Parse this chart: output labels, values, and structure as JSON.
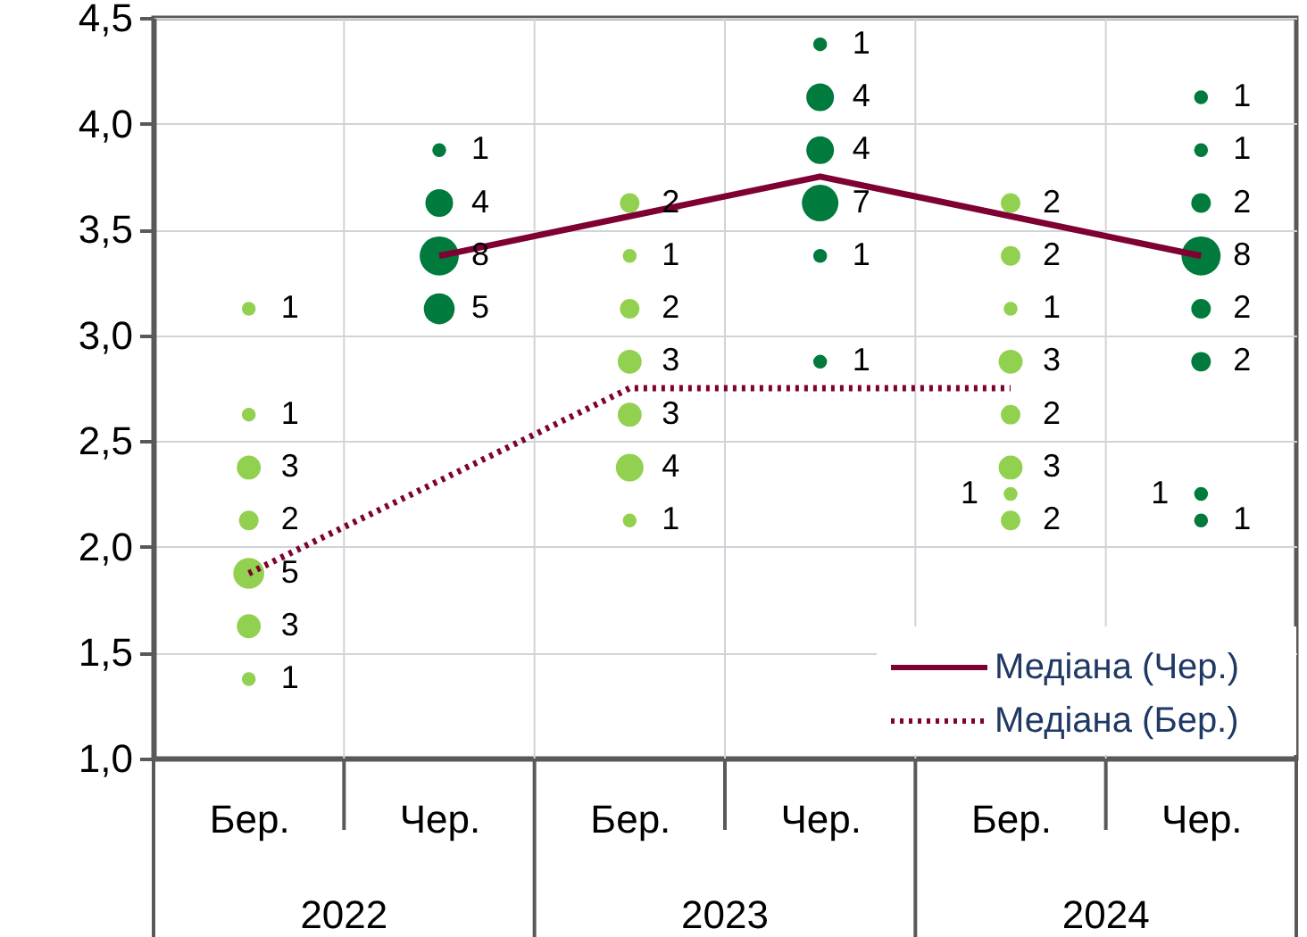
{
  "chart_data": {
    "type": "bubble",
    "categories": [
      "Бер.",
      "Чер.",
      "Бер.",
      "Чер.",
      "Бер.",
      "Чер."
    ],
    "annotations": [
      "2022",
      "2023",
      "2024"
    ],
    "ylim": [
      1.0,
      4.5
    ],
    "yticks": [
      {
        "value": 1.0,
        "label": "1,0"
      },
      {
        "value": 1.5,
        "label": "1,5"
      },
      {
        "value": 2.0,
        "label": "2,0"
      },
      {
        "value": 2.5,
        "label": "2,5"
      },
      {
        "value": 3.0,
        "label": "3,0"
      },
      {
        "value": 3.5,
        "label": "3,5"
      },
      {
        "value": 4.0,
        "label": "4,0"
      },
      {
        "value": 4.5,
        "label": "4,5"
      }
    ],
    "grid": true,
    "legend": "bottom right",
    "series": [
      {
        "colors": [
          "#92d050",
          "#007a3d",
          "#92d050",
          "#007a3d",
          "#92d050",
          "#007a3d"
        ],
        "values": [
          3.125,
          3.875,
          3.625,
          4.375,
          3.625,
          4.125
        ],
        "sizes": [
          1,
          1,
          2,
          1,
          2,
          1
        ],
        "value_labels": [
          "1",
          "1",
          "2",
          "1",
          "2",
          "1"
        ]
      },
      {
        "colors": [
          "#92d050",
          "#007a3d",
          "#92d050",
          "#007a3d",
          "#92d050",
          "#007a3d"
        ],
        "values": [
          2.625,
          3.625,
          3.375,
          4.125,
          3.375,
          3.875
        ],
        "sizes": [
          1,
          4,
          1,
          4,
          2,
          1
        ],
        "value_labels": [
          "1",
          "4",
          "1",
          "4",
          "2",
          "1"
        ]
      },
      {
        "colors": [
          "#92d050",
          "#007a3d",
          "#92d050",
          "#007a3d",
          "#92d050",
          "#007a3d"
        ],
        "values": [
          2.375,
          3.375,
          3.125,
          3.875,
          3.125,
          3.625
        ],
        "sizes": [
          3,
          8,
          2,
          4,
          1,
          2
        ],
        "value_labels": [
          "3",
          "8",
          "2",
          "4",
          "1",
          "2"
        ]
      },
      {
        "colors": [
          "#92d050",
          "#007a3d",
          "#92d050",
          "#007a3d",
          "#92d050",
          "#007a3d"
        ],
        "values": [
          2.125,
          3.125,
          2.875,
          3.625,
          2.875,
          3.375
        ],
        "sizes": [
          2,
          5,
          3,
          7,
          3,
          8
        ],
        "value_labels": [
          "2",
          "5",
          "3",
          "7",
          "3",
          "8"
        ]
      },
      {
        "colors": [
          "#92d050",
          "#007a3d",
          "#92d050",
          "#007a3d",
          "#92d050",
          "#007a3d"
        ],
        "values": [
          1.875,
          null,
          2.625,
          3.375,
          2.625,
          3.125
        ],
        "sizes": [
          5,
          null,
          3,
          1,
          2,
          2
        ],
        "value_labels": [
          "5",
          null,
          "3",
          "1",
          "2",
          "2"
        ]
      },
      {
        "colors": [
          "#92d050",
          "#007a3d",
          "#92d050",
          "#007a3d",
          "#92d050",
          "#007a3d"
        ],
        "values": [
          1.625,
          null,
          2.375,
          2.875,
          2.375,
          2.875
        ],
        "sizes": [
          3,
          null,
          4,
          1,
          3,
          2
        ],
        "value_labels": [
          "3",
          null,
          "4",
          "1",
          "3",
          "2"
        ]
      },
      {
        "colors": [
          "#92d050",
          "#007a3d",
          "#92d050",
          "#007a3d",
          "#92d050",
          "#007a3d"
        ],
        "values": [
          1.375,
          null,
          2.125,
          null,
          2.25,
          2.25
        ],
        "sizes": [
          1,
          null,
          1,
          null,
          1,
          1
        ],
        "value_labels": [
          "1",
          null,
          "1",
          null,
          "1",
          "1"
        ]
      },
      {
        "colors": [
          "#92d050",
          "#007a3d",
          "#92d050",
          "#007a3d",
          "#92d050",
          "#007a3d"
        ],
        "values": [
          null,
          null,
          null,
          null,
          2.125,
          2.125
        ],
        "sizes": [
          null,
          null,
          null,
          null,
          2,
          1
        ],
        "value_labels": [
          null,
          null,
          null,
          null,
          "2",
          "1"
        ]
      },
      {
        "type": "line",
        "name": "Медіана (Чер.)",
        "color": "#7f0032",
        "line_style": "solid",
        "values": [
          null,
          3.375,
          null,
          3.75,
          null,
          3.375
        ]
      },
      {
        "type": "line",
        "name": "Медіана (Бер.)",
        "color": "#7f0032",
        "line_style": "dotted",
        "values": [
          1.875,
          null,
          2.75,
          null,
          2.75,
          null
        ]
      }
    ]
  }
}
